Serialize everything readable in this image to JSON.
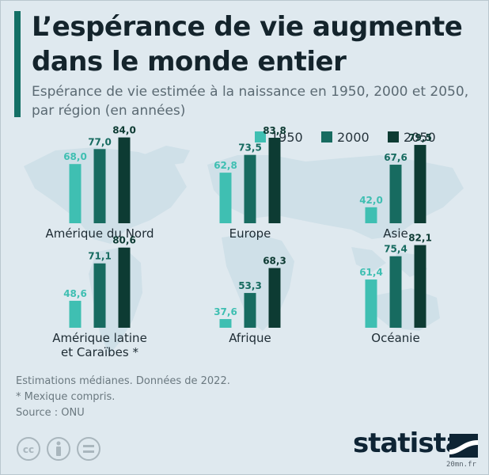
{
  "title": "L’espérance de vie augmente dans le monde entier",
  "subtitle": "Espérance de vie estimée à la naissance en 1950, 2000 et 2050, par région (en années)",
  "notes": [
    "Estimations médianes. Données de 2022.",
    "* Mexique compris.",
    "Source : ONU"
  ],
  "brand": "statista",
  "watermark": "20mn.fr",
  "colors": {
    "s1950": "#3fbfb2",
    "s2000": "#176b60",
    "s2050": "#0d3b33",
    "accent": "#147066",
    "background": "#dfe9ef",
    "map": "#cfe0e8"
  },
  "chart_data": {
    "type": "bar",
    "ylim": [
      0,
      100
    ],
    "legend_position": "top-right",
    "series": [
      {
        "name": "1950",
        "values": [
          68.0,
          62.8,
          42.0,
          48.6,
          37.6,
          61.4
        ]
      },
      {
        "name": "2000",
        "values": [
          77.0,
          73.5,
          67.6,
          71.1,
          53.3,
          75.4
        ]
      },
      {
        "name": "2050",
        "values": [
          84.0,
          83.8,
          79.5,
          80.6,
          68.3,
          82.1
        ]
      }
    ],
    "categories": [
      "Amérique du Nord",
      "Europe",
      "Asie",
      "Amérique latine et Caraïbes *",
      "Afrique",
      "Océanie"
    ],
    "category_lines": [
      [
        "Amérique du Nord"
      ],
      [
        "Europe"
      ],
      [
        "Asie"
      ],
      [
        "Amérique latine",
        "et Caraïbes *"
      ],
      [
        "Afrique"
      ],
      [
        "Océanie"
      ]
    ],
    "value_labels": [
      [
        "68,0",
        "62,8",
        "42,0",
        "48,6",
        "37,6",
        "61,4"
      ],
      [
        "77,0",
        "73,5",
        "67,6",
        "71,1",
        "53,3",
        "75,4"
      ],
      [
        "84,0",
        "83,8",
        "79,5",
        "80,6",
        "68,3",
        "82,1"
      ]
    ]
  }
}
